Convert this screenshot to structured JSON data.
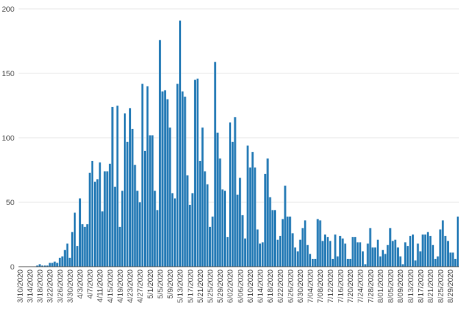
{
  "chart_data": {
    "type": "bar",
    "title": "",
    "xlabel": "",
    "ylabel": "",
    "ylim": [
      0,
      200
    ],
    "yticks": [
      0,
      50,
      100,
      150,
      200
    ],
    "grid": true,
    "bar_color": "#1f77b4",
    "grid_color": "#e6e6e6",
    "axis_color": "#444444",
    "x_start": "3/10/2020",
    "x_end": "9/1/2020",
    "xtick_labels": [
      "3/10/2020",
      "3/14/2020",
      "3/18/2020",
      "3/22/2020",
      "3/26/2020",
      "3/30/2020",
      "4/3/2020",
      "4/7/2020",
      "4/11/2020",
      "4/15/2020",
      "4/19/2020",
      "4/23/2020",
      "4/27/2020",
      "5/1/2020",
      "5/5/2020",
      "5/9/2020",
      "5/13/2020",
      "5/17/2020",
      "5/21/2020",
      "5/25/2020",
      "5/29/2020",
      "6/02/2020",
      "6/06/2020",
      "6/10/2020",
      "6/14/2020",
      "6/18/2020",
      "6/22/2020",
      "6/26/2020",
      "6/30/2020",
      "7/04/2020",
      "7/08/2020",
      "7/12/2020",
      "7/16/2020",
      "7/20/2020",
      "7/24/2020",
      "7/28/2020",
      "8/01/2020",
      "8/05/2020",
      "8/09/2020",
      "8/13/2020",
      "8/17/2020",
      "8/21/2020",
      "8/25/2020",
      "8/29/2020"
    ],
    "values": [
      0,
      0,
      0,
      0,
      0,
      0,
      0,
      1,
      2,
      1,
      1,
      1,
      3,
      3,
      4,
      3,
      7,
      8,
      13,
      18,
      7,
      27,
      42,
      16,
      53,
      33,
      31,
      33,
      73,
      82,
      66,
      68,
      81,
      43,
      74,
      74,
      80,
      124,
      62,
      125,
      31,
      59,
      119,
      97,
      123,
      107,
      79,
      59,
      50,
      142,
      90,
      140,
      102,
      102,
      59,
      44,
      176,
      136,
      137,
      130,
      108,
      57,
      53,
      142,
      191,
      136,
      132,
      71,
      48,
      57,
      145,
      146,
      82,
      108,
      74,
      64,
      31,
      39,
      159,
      104,
      84,
      60,
      59,
      23,
      112,
      97,
      116,
      56,
      69,
      40,
      22,
      94,
      77,
      89,
      77,
      29,
      18,
      19,
      72,
      84,
      54,
      44,
      44,
      21,
      24,
      37,
      63,
      39,
      39,
      26,
      15,
      12,
      21,
      30,
      36,
      17,
      10,
      6,
      6,
      37,
      36,
      20,
      25,
      23,
      20,
      6,
      25,
      8,
      24,
      22,
      18,
      6,
      6,
      23,
      23,
      19,
      19,
      12,
      2,
      18,
      30,
      15,
      15,
      21,
      8,
      13,
      10,
      17,
      30,
      20,
      21,
      15,
      8,
      2,
      19,
      16,
      24,
      25,
      5,
      18,
      12,
      25,
      25,
      27,
      24,
      17,
      6,
      8,
      29,
      36,
      24,
      20,
      11,
      11,
      6,
      39
    ]
  }
}
